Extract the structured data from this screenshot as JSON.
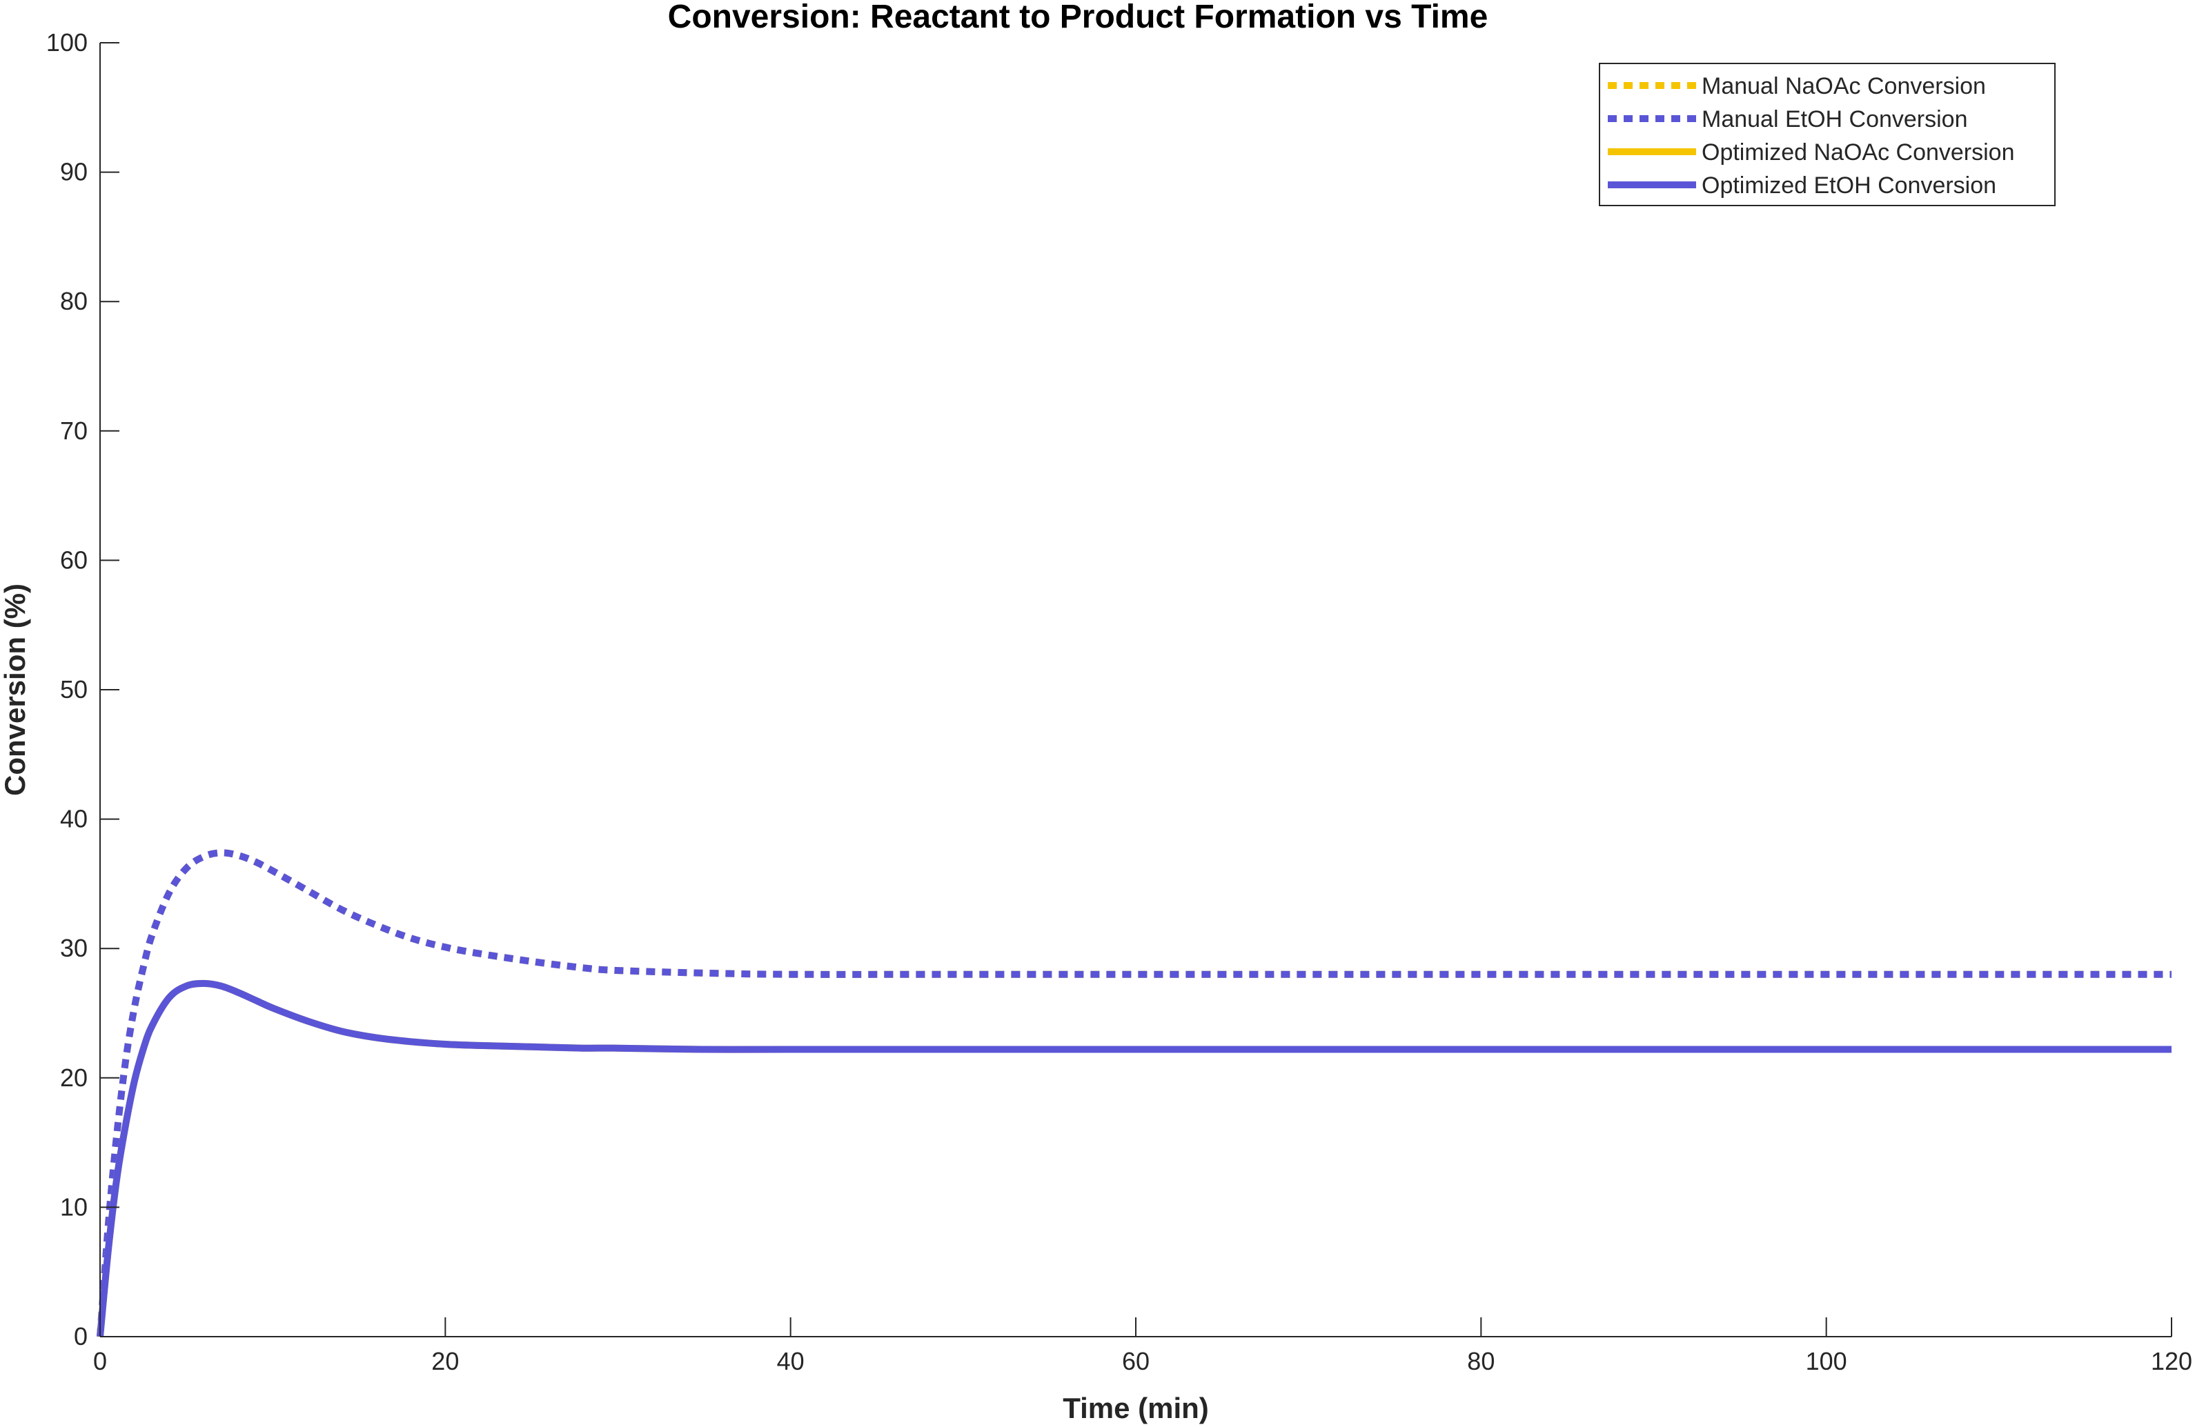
{
  "chart_data": {
    "type": "line",
    "title": "Conversion: Reactant to Product Formation vs Time",
    "xlabel": "Time (min)",
    "ylabel": "Conversion (%)",
    "xlim": [
      0,
      120
    ],
    "ylim": [
      0,
      100
    ],
    "xticks": [
      "0",
      "20",
      "40",
      "60",
      "80",
      "100",
      "120"
    ],
    "yticks": [
      "0",
      "10",
      "20",
      "30",
      "40",
      "50",
      "60",
      "70",
      "80",
      "90",
      "100"
    ],
    "grid": false,
    "legend_position": "top-right",
    "series": [
      {
        "name": "Manual NaOAc Conversion",
        "color": "#F5C400",
        "style": "dotted",
        "x": [
          0,
          0.5,
          1,
          1.5,
          2,
          2.5,
          3,
          4,
          5,
          6,
          7,
          8,
          9,
          10,
          12,
          14,
          16,
          18,
          20,
          22,
          25,
          28,
          30,
          35,
          40,
          50,
          60,
          70,
          80,
          90,
          100,
          110,
          120
        ],
        "y": [
          0,
          9,
          16,
          21.5,
          25.5,
          28.5,
          31,
          34.3,
          36.2,
          37.1,
          37.4,
          37.2,
          36.7,
          36,
          34.5,
          33,
          31.8,
          30.8,
          30.1,
          29.6,
          29,
          28.5,
          28.3,
          28.1,
          28,
          28,
          28,
          28,
          28,
          28,
          28,
          28,
          28
        ]
      },
      {
        "name": "Manual EtOH Conversion",
        "color": "#5A55D6",
        "style": "dotted",
        "x": [
          0,
          0.5,
          1,
          1.5,
          2,
          2.5,
          3,
          4,
          5,
          6,
          7,
          8,
          9,
          10,
          12,
          14,
          16,
          18,
          20,
          22,
          25,
          28,
          30,
          35,
          40,
          50,
          60,
          70,
          80,
          90,
          100,
          110,
          120
        ],
        "y": [
          0,
          9,
          16,
          21.5,
          25.5,
          28.5,
          31,
          34.3,
          36.2,
          37.1,
          37.4,
          37.2,
          36.7,
          36,
          34.5,
          33,
          31.8,
          30.8,
          30.1,
          29.6,
          29,
          28.5,
          28.3,
          28.1,
          28,
          28,
          28,
          28,
          28,
          28,
          28,
          28,
          28
        ]
      },
      {
        "name": "Optimized NaOAc Conversion",
        "color": "#F5C400",
        "style": "solid",
        "x": [
          0,
          0.5,
          1,
          1.5,
          2,
          2.5,
          3,
          4,
          5,
          6,
          7,
          8,
          9,
          10,
          12,
          14,
          16,
          18,
          20,
          22,
          25,
          28,
          30,
          35,
          40,
          50,
          60,
          70,
          80,
          90,
          100,
          110,
          120
        ],
        "y": [
          0,
          7,
          12.5,
          16.5,
          19.8,
          22.2,
          24,
          26.2,
          27.1,
          27.3,
          27.1,
          26.6,
          26,
          25.4,
          24.4,
          23.6,
          23.1,
          22.8,
          22.6,
          22.5,
          22.4,
          22.3,
          22.3,
          22.2,
          22.2,
          22.2,
          22.2,
          22.2,
          22.2,
          22.2,
          22.2,
          22.2,
          22.2
        ]
      },
      {
        "name": "Optimized EtOH Conversion",
        "color": "#5A55D6",
        "style": "solid",
        "x": [
          0,
          0.5,
          1,
          1.5,
          2,
          2.5,
          3,
          4,
          5,
          6,
          7,
          8,
          9,
          10,
          12,
          14,
          16,
          18,
          20,
          22,
          25,
          28,
          30,
          35,
          40,
          50,
          60,
          70,
          80,
          90,
          100,
          110,
          120
        ],
        "y": [
          0,
          7,
          12.5,
          16.5,
          19.8,
          22.2,
          24,
          26.2,
          27.1,
          27.3,
          27.1,
          26.6,
          26,
          25.4,
          24.4,
          23.6,
          23.1,
          22.8,
          22.6,
          22.5,
          22.4,
          22.3,
          22.3,
          22.2,
          22.2,
          22.2,
          22.2,
          22.2,
          22.2,
          22.2,
          22.2,
          22.2,
          22.2
        ]
      }
    ]
  }
}
